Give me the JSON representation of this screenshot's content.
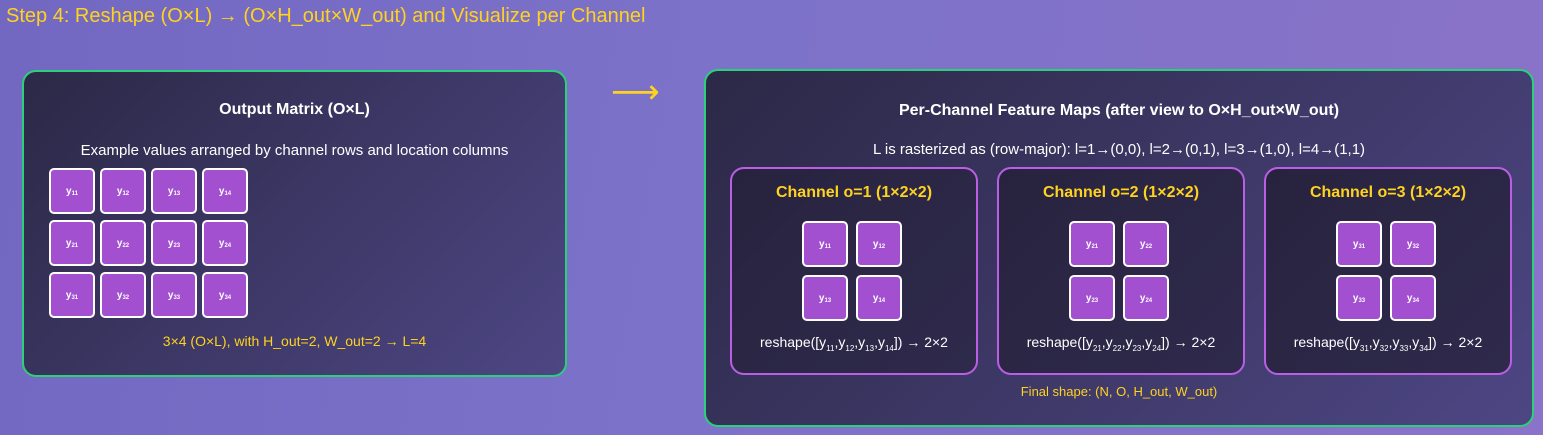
{
  "step_title": "Step 4: Reshape (O×L) → (O×H_out×W_out) and Visualize per Channel",
  "arrow": "⟶",
  "left_panel": {
    "title": "Output Matrix (O×L)",
    "subtitle": "Example values arranged by channel rows and location columns",
    "rows": [
      [
        {
          "base": "y",
          "sub": "11"
        },
        {
          "base": "y",
          "sub": "12"
        },
        {
          "base": "y",
          "sub": "13"
        },
        {
          "base": "y",
          "sub": "14"
        }
      ],
      [
        {
          "base": "y",
          "sub": "21"
        },
        {
          "base": "y",
          "sub": "22"
        },
        {
          "base": "y",
          "sub": "23"
        },
        {
          "base": "y",
          "sub": "24"
        }
      ],
      [
        {
          "base": "y",
          "sub": "31"
        },
        {
          "base": "y",
          "sub": "32"
        },
        {
          "base": "y",
          "sub": "33"
        },
        {
          "base": "y",
          "sub": "34"
        }
      ]
    ],
    "caption": "3×4 (O×L), with H_out=2, W_out=2 → L=4"
  },
  "right_panel": {
    "title": "Per-Channel Feature Maps (after view to O×H_out×W_out)",
    "subtitle": "L is rasterized as (row-major): l=1→(0,0), l=2→(0,1), l=3→(1,0), l=4→(1,1)",
    "channels": [
      {
        "title": "Channel o=1 (1×2×2)",
        "cells": [
          "11",
          "12",
          "13",
          "14"
        ],
        "reshape_prefix": "reshape([",
        "reshape_suffix": "]) → 2×2"
      },
      {
        "title": "Channel o=2 (1×2×2)",
        "cells": [
          "21",
          "22",
          "23",
          "24"
        ],
        "reshape_prefix": "reshape([",
        "reshape_suffix": "]) → 2×2"
      },
      {
        "title": "Channel o=3 (1×2×2)",
        "cells": [
          "31",
          "32",
          "33",
          "34"
        ],
        "reshape_prefix": "reshape([",
        "reshape_suffix": "]) → 2×2"
      }
    ],
    "cell_base": "y",
    "final_shape": "Final shape: (N, O, H_out, W_out)"
  }
}
